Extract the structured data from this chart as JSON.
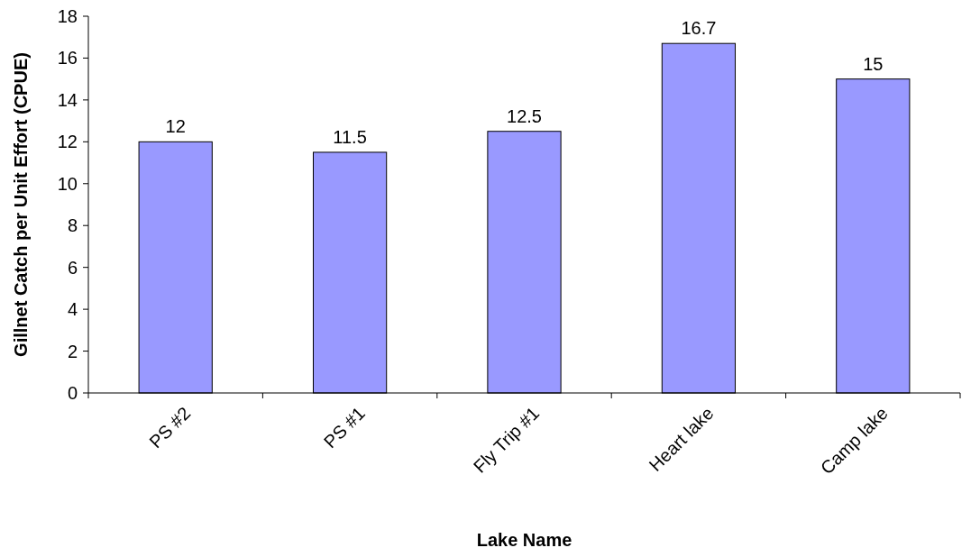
{
  "chart_data": {
    "type": "bar",
    "xlabel": "Lake Name",
    "ylabel": "Gillnet Catch per Unit Effort (CPUE)",
    "categories": [
      "PS #2",
      "PS #1",
      "Fly Trip #1",
      "Heart lake",
      "Camp lake"
    ],
    "values": [
      12,
      11.5,
      12.5,
      16.7,
      15
    ],
    "color": "#9999ff",
    "ylim": [
      0,
      18
    ],
    "yticks": [
      0,
      2,
      4,
      6,
      8,
      10,
      12,
      14,
      16,
      18
    ],
    "data_labels": true
  }
}
